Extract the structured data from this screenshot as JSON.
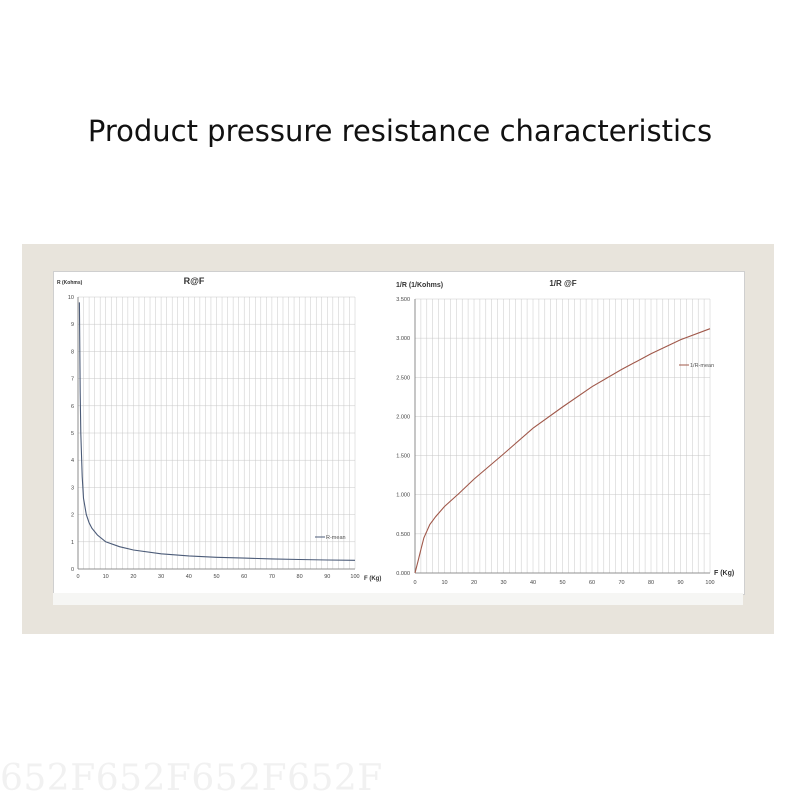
{
  "page": {
    "title": "Product pressure resistance characteristics",
    "watermark": "652F652F652F652F"
  },
  "colors": {
    "panel_bg": "#e8e4dc",
    "grid": "#c8c8c8",
    "series_left": "#4b5b78",
    "series_right": "#a0584a"
  },
  "chart_data": [
    {
      "type": "line",
      "title": "R@F",
      "ylabel": "R (Kohms)",
      "xlabel": "F (Kg)",
      "xlim": [
        0,
        100
      ],
      "ylim": [
        0,
        10
      ],
      "xticks": [
        0,
        10,
        20,
        30,
        40,
        50,
        60,
        70,
        80,
        90,
        100
      ],
      "yticks": [
        0,
        1,
        2,
        3,
        4,
        5,
        6,
        7,
        8,
        9,
        10
      ],
      "ytick_labels": [
        "0",
        "1",
        "2",
        "3",
        "4",
        "5",
        "6",
        "7",
        "8",
        "9",
        "10"
      ],
      "grid": true,
      "legend": "right",
      "series": [
        {
          "name": "R-mean",
          "x": [
            0.5,
            0.8,
            1,
            1.5,
            2,
            3,
            4,
            5,
            7,
            10,
            15,
            20,
            30,
            40,
            50,
            60,
            70,
            80,
            90,
            100
          ],
          "y": [
            9.8,
            6.5,
            5.0,
            3.4,
            2.6,
            2.0,
            1.7,
            1.5,
            1.25,
            1.0,
            0.82,
            0.7,
            0.56,
            0.48,
            0.43,
            0.4,
            0.37,
            0.35,
            0.33,
            0.32
          ]
        }
      ]
    },
    {
      "type": "line",
      "title": "1/R @F",
      "ylabel": "1/R (1/Kohms)",
      "xlabel": "F (Kg)",
      "xlim": [
        0,
        100
      ],
      "ylim": [
        0,
        3.5
      ],
      "xticks": [
        0,
        10,
        20,
        30,
        40,
        50,
        60,
        70,
        80,
        90,
        100
      ],
      "yticks": [
        0,
        0.5,
        1,
        1.5,
        2,
        2.5,
        3,
        3.5
      ],
      "ytick_labels": [
        "0.000",
        "0.500",
        "1.000",
        "1.500",
        "2.000",
        "2.500",
        "3.000",
        "3.500"
      ],
      "grid": true,
      "legend": "top-right",
      "series": [
        {
          "name": "1/R-mean",
          "x": [
            0,
            1,
            2,
            3,
            5,
            7,
            10,
            15,
            20,
            30,
            40,
            50,
            60,
            70,
            80,
            90,
            100
          ],
          "y": [
            0.0,
            0.15,
            0.3,
            0.45,
            0.62,
            0.72,
            0.85,
            1.02,
            1.2,
            1.52,
            1.85,
            2.12,
            2.38,
            2.6,
            2.8,
            2.98,
            3.12
          ]
        }
      ]
    }
  ]
}
